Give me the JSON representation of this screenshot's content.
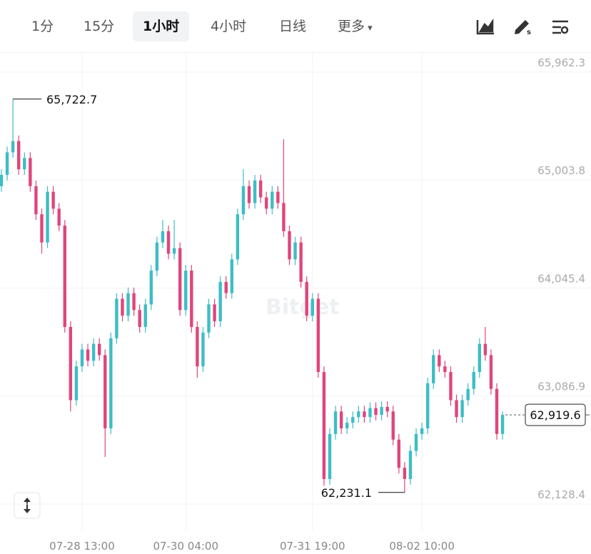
{
  "toolbar": {
    "tabs": [
      "1分",
      "15分",
      "1小时",
      "4小时",
      "日线",
      "更多"
    ],
    "selected": 2
  },
  "chart_data": {
    "type": "candlestick",
    "watermark": "Bitget",
    "up_color": "#3dbdc6",
    "down_color": "#e0457b",
    "ylim": [
      61881,
      66127
    ],
    "yticks": [
      {
        "value": 65962.3,
        "label": "65,962.3"
      },
      {
        "value": 65003.8,
        "label": "65,003.8"
      },
      {
        "value": 64045.4,
        "label": "64,045.4"
      },
      {
        "value": 63086.9,
        "label": "63,086.9"
      },
      {
        "value": 62128.4,
        "label": "62,128.4"
      }
    ],
    "grid": true,
    "categories": [
      null,
      null,
      null,
      null,
      null,
      null,
      null,
      null,
      null,
      null,
      null,
      null,
      null,
      null,
      "07-28 13:00",
      null,
      null,
      null,
      null,
      null,
      null,
      null,
      null,
      null,
      null,
      null,
      null,
      null,
      null,
      null,
      null,
      null,
      "07-30 04:00",
      null,
      null,
      null,
      null,
      null,
      null,
      null,
      null,
      null,
      null,
      null,
      null,
      null,
      null,
      null,
      null,
      null,
      null,
      null,
      null,
      null,
      "07-31 19:00",
      null,
      null,
      null,
      null,
      null,
      null,
      null,
      null,
      null,
      null,
      null,
      null,
      null,
      null,
      null,
      null,
      null,
      null,
      "08-02 10:00",
      null,
      null,
      null,
      null,
      null,
      null,
      null,
      null,
      null,
      null,
      null,
      null,
      null,
      null
    ],
    "open": [
      64950,
      65050,
      65250,
      65350,
      65100,
      65200,
      64950,
      64700,
      64450,
      64900,
      64750,
      64600,
      63700,
      63050,
      63350,
      63500,
      63400,
      63550,
      63450,
      62800,
      63600,
      63950,
      63800,
      64000,
      63850,
      63700,
      63900,
      64200,
      64450,
      64550,
      64350,
      64400,
      63850,
      64200,
      63700,
      63350,
      63650,
      63900,
      63750,
      64100,
      64000,
      64300,
      64700,
      64950,
      64800,
      65000,
      64850,
      64750,
      64900,
      64800,
      64550,
      64300,
      64450,
      64100,
      63800,
      63950,
      63300,
      62350,
      62750,
      62950,
      62800,
      62850,
      62900,
      62950,
      62900,
      62980,
      62920,
      62990,
      62950,
      62700,
      62450,
      62350,
      62600,
      62750,
      62800,
      63200,
      63450,
      63350,
      63300,
      63050,
      62900,
      63050,
      63150,
      63300,
      63550,
      63450,
      63150,
      62750
    ],
    "high": [
      65100,
      65300,
      65722.7,
      65400,
      65250,
      65250,
      65000,
      64750,
      64950,
      64950,
      64800,
      64650,
      63750,
      63400,
      63550,
      63550,
      63600,
      63600,
      63500,
      63650,
      64000,
      64000,
      64050,
      64050,
      63900,
      63950,
      64250,
      64500,
      64650,
      64600,
      64650,
      64450,
      64250,
      64250,
      63750,
      63700,
      63950,
      63950,
      64150,
      64150,
      64350,
      64750,
      65100,
      65000,
      65050,
      65050,
      64900,
      64950,
      64950,
      65366,
      64600,
      64500,
      64500,
      64150,
      64000,
      64000,
      63350,
      62800,
      63000,
      63000,
      62900,
      62950,
      63000,
      63000,
      63030,
      63030,
      63040,
      63040,
      63000,
      62750,
      62500,
      62650,
      62800,
      62850,
      63250,
      63500,
      63500,
      63400,
      63350,
      63100,
      63100,
      63200,
      63350,
      63600,
      63700,
      63500,
      63200,
      62950
    ],
    "low": [
      64900,
      65000,
      65200,
      65050,
      65050,
      64900,
      64650,
      64350,
      64400,
      64700,
      64550,
      63650,
      62950,
      63000,
      63300,
      63350,
      63350,
      63400,
      62546,
      62750,
      63550,
      63750,
      63750,
      63800,
      63650,
      63650,
      63850,
      64150,
      64400,
      64300,
      64300,
      63800,
      63800,
      63650,
      63250,
      63300,
      63600,
      63700,
      63700,
      63950,
      63950,
      64250,
      64650,
      64750,
      64750,
      64800,
      64700,
      64700,
      64750,
      64500,
      64250,
      64250,
      64050,
      63750,
      63750,
      63250,
      62290,
      62300,
      62700,
      62750,
      62750,
      62800,
      62850,
      62850,
      62850,
      62870,
      62870,
      62900,
      62650,
      62400,
      62231.1,
      62300,
      62550,
      62700,
      62750,
      63150,
      63300,
      63250,
      63000,
      62850,
      62850,
      63000,
      63100,
      63250,
      63400,
      63100,
      62700,
      62700
    ],
    "close": [
      65050,
      65250,
      65350,
      65100,
      65200,
      64950,
      64700,
      64450,
      64900,
      64750,
      64600,
      63700,
      63050,
      63350,
      63500,
      63400,
      63550,
      63450,
      62800,
      63600,
      63950,
      63800,
      64000,
      63850,
      63700,
      63900,
      64200,
      64450,
      64550,
      64350,
      64400,
      63850,
      64200,
      63700,
      63350,
      63650,
      63900,
      63750,
      64100,
      64000,
      64300,
      64700,
      64950,
      64800,
      65000,
      64850,
      64750,
      64900,
      64800,
      64550,
      64300,
      64450,
      64100,
      63800,
      63950,
      63300,
      62350,
      62750,
      62950,
      62800,
      62850,
      62900,
      62950,
      62900,
      62980,
      62920,
      62990,
      62950,
      62700,
      62450,
      62350,
      62600,
      62750,
      62800,
      63200,
      63450,
      63350,
      63300,
      63050,
      62900,
      63050,
      63150,
      63300,
      63550,
      63450,
      63150,
      62750,
      62919.6
    ],
    "high_marker": {
      "value": 65722.7,
      "label": "65,722.7"
    },
    "low_marker": {
      "value": 62231.1,
      "label": "62,231.1"
    },
    "last_price": {
      "value": 62919.6,
      "label": "62,919.6"
    }
  }
}
